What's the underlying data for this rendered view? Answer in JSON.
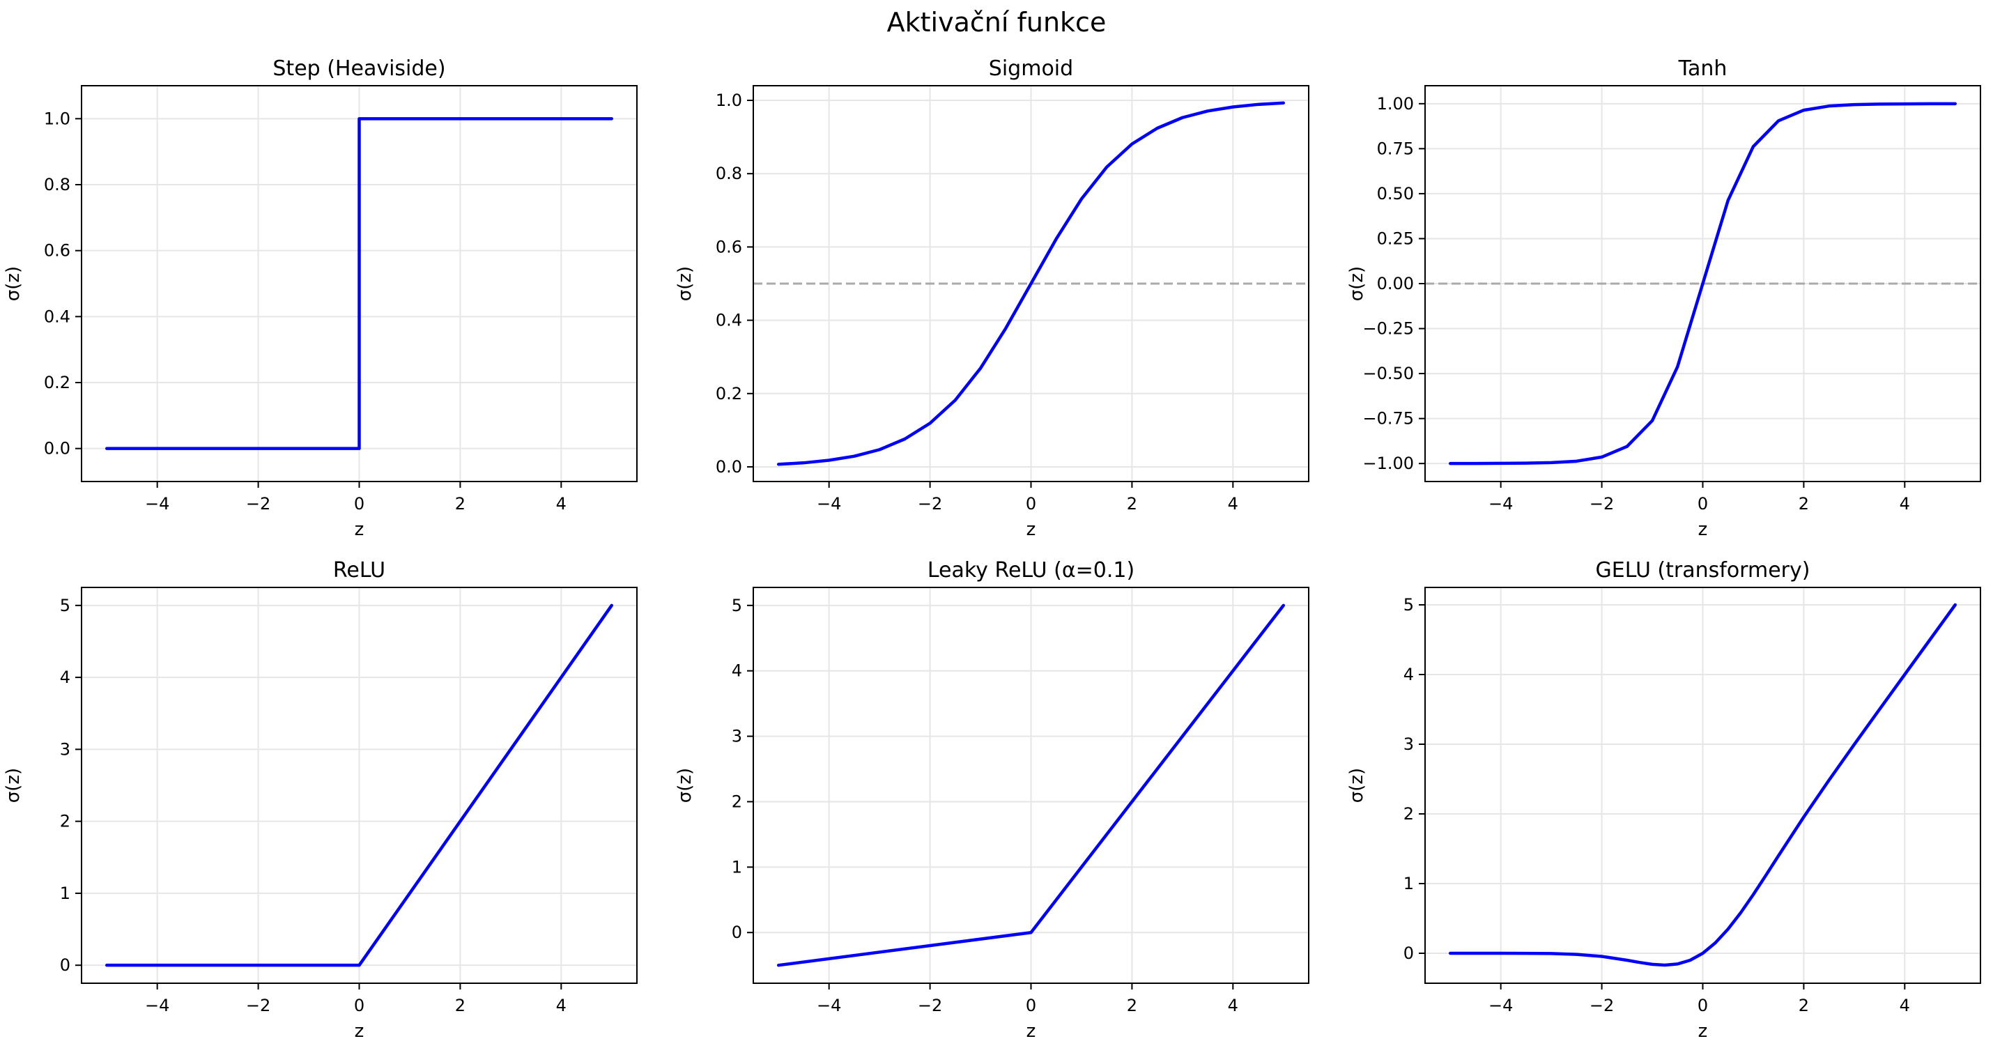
{
  "figure_title": "Aktivační funkce",
  "colors": {
    "line": "#0000ff",
    "reference": "#aaaaaa",
    "grid": "#e6e6e6",
    "axes": "#000000"
  },
  "chart_data": [
    {
      "type": "line",
      "title": "Step (Heaviside)",
      "xlabel": "z",
      "ylabel": "σ(z)",
      "xlim": [
        -5.5,
        5.5
      ],
      "ylim": [
        -0.1,
        1.1
      ],
      "xticks": [
        -4,
        -2,
        0,
        2,
        4
      ],
      "xtick_labels": [
        "−4",
        "−2",
        "0",
        "2",
        "4"
      ],
      "yticks": [
        0,
        0.2,
        0.4,
        0.6,
        0.8,
        1.0
      ],
      "ytick_labels": [
        "0.0",
        "0.2",
        "0.4",
        "0.6",
        "0.8",
        "1.0"
      ],
      "grid": true,
      "series": [
        {
          "x": [
            -5,
            0,
            0,
            5
          ],
          "y": [
            0,
            0,
            1,
            1
          ]
        }
      ]
    },
    {
      "type": "line",
      "title": "Sigmoid",
      "xlabel": "z",
      "ylabel": "σ(z)",
      "xlim": [
        -5.5,
        5.5
      ],
      "ylim": [
        -0.04,
        1.04
      ],
      "xticks": [
        -4,
        -2,
        0,
        2,
        4
      ],
      "xtick_labels": [
        "−4",
        "−2",
        "0",
        "2",
        "4"
      ],
      "yticks": [
        0,
        0.2,
        0.4,
        0.6,
        0.8,
        1.0
      ],
      "ytick_labels": [
        "0.0",
        "0.2",
        "0.4",
        "0.6",
        "0.8",
        "1.0"
      ],
      "grid": true,
      "reference_line": {
        "y": 0.5,
        "style": "dashed"
      },
      "series": [
        {
          "x": [
            -5,
            -4.5,
            -4,
            -3.5,
            -3,
            -2.5,
            -2,
            -1.5,
            -1,
            -0.5,
            0,
            0.5,
            1,
            1.5,
            2,
            2.5,
            3,
            3.5,
            4,
            4.5,
            5
          ],
          "y": [
            0.007,
            0.011,
            0.018,
            0.029,
            0.047,
            0.076,
            0.119,
            0.182,
            0.269,
            0.378,
            0.5,
            0.622,
            0.731,
            0.818,
            0.881,
            0.924,
            0.953,
            0.971,
            0.982,
            0.989,
            0.993
          ]
        }
      ]
    },
    {
      "type": "line",
      "title": "Tanh",
      "xlabel": "z",
      "ylabel": "σ(z)",
      "xlim": [
        -5.5,
        5.5
      ],
      "ylim": [
        -1.1,
        1.1
      ],
      "xticks": [
        -4,
        -2,
        0,
        2,
        4
      ],
      "xtick_labels": [
        "−4",
        "−2",
        "0",
        "2",
        "4"
      ],
      "yticks": [
        -1.0,
        -0.75,
        -0.5,
        -0.25,
        0,
        0.25,
        0.5,
        0.75,
        1.0
      ],
      "ytick_labels": [
        "−1.00",
        "−0.75",
        "−0.50",
        "−0.25",
        "0.00",
        "0.25",
        "0.50",
        "0.75",
        "1.00"
      ],
      "grid": true,
      "reference_line": {
        "y": 0,
        "style": "dashed"
      },
      "series": [
        {
          "x": [
            -5,
            -4.5,
            -4,
            -3.5,
            -3,
            -2.5,
            -2,
            -1.5,
            -1,
            -0.5,
            0,
            0.5,
            1,
            1.5,
            2,
            2.5,
            3,
            3.5,
            4,
            4.5,
            5
          ],
          "y": [
            -1.0,
            -1.0,
            -0.999,
            -0.998,
            -0.995,
            -0.987,
            -0.964,
            -0.905,
            -0.762,
            -0.462,
            0,
            0.462,
            0.762,
            0.905,
            0.964,
            0.987,
            0.995,
            0.998,
            0.999,
            1.0,
            1.0
          ]
        }
      ]
    },
    {
      "type": "line",
      "title": "ReLU",
      "xlabel": "z",
      "ylabel": "σ(z)",
      "xlim": [
        -5.5,
        5.5
      ],
      "ylim": [
        -0.25,
        5.25
      ],
      "xticks": [
        -4,
        -2,
        0,
        2,
        4
      ],
      "xtick_labels": [
        "−4",
        "−2",
        "0",
        "2",
        "4"
      ],
      "yticks": [
        0,
        1,
        2,
        3,
        4,
        5
      ],
      "ytick_labels": [
        "0",
        "1",
        "2",
        "3",
        "4",
        "5"
      ],
      "grid": true,
      "series": [
        {
          "x": [
            -5,
            0,
            5
          ],
          "y": [
            0,
            0,
            5
          ]
        }
      ]
    },
    {
      "type": "line",
      "title": "Leaky ReLU (α=0.1)",
      "xlabel": "z",
      "ylabel": "σ(z)",
      "xlim": [
        -5.5,
        5.5
      ],
      "ylim": [
        -0.775,
        5.275
      ],
      "xticks": [
        -4,
        -2,
        0,
        2,
        4
      ],
      "xtick_labels": [
        "−4",
        "−2",
        "0",
        "2",
        "4"
      ],
      "yticks": [
        0,
        1,
        2,
        3,
        4,
        5
      ],
      "ytick_labels": [
        "0",
        "1",
        "2",
        "3",
        "4",
        "5"
      ],
      "grid": true,
      "series": [
        {
          "x": [
            -5,
            0,
            5
          ],
          "y": [
            -0.5,
            0,
            5
          ]
        }
      ]
    },
    {
      "type": "line",
      "title": "GELU (transformery)",
      "xlabel": "z",
      "ylabel": "σ(z)",
      "xlim": [
        -5.5,
        5.5
      ],
      "ylim": [
        -0.43,
        5.25
      ],
      "xticks": [
        -4,
        -2,
        0,
        2,
        4
      ],
      "xtick_labels": [
        "−4",
        "−2",
        "0",
        "2",
        "4"
      ],
      "yticks": [
        0,
        1,
        2,
        3,
        4,
        5
      ],
      "ytick_labels": [
        "0",
        "1",
        "2",
        "3",
        "4",
        "5"
      ],
      "grid": true,
      "series": [
        {
          "x": [
            -5,
            -4.5,
            -4,
            -3.5,
            -3,
            -2.5,
            -2,
            -1.5,
            -1.25,
            -1,
            -0.75,
            -0.5,
            -0.25,
            0,
            0.25,
            0.5,
            0.75,
            1,
            1.25,
            1.5,
            2,
            2.5,
            3,
            3.5,
            4,
            4.5,
            5
          ],
          "y": [
            0,
            0,
            0,
            -0.001,
            -0.004,
            -0.016,
            -0.045,
            -0.1,
            -0.132,
            -0.159,
            -0.17,
            -0.154,
            -0.1,
            0,
            0.15,
            0.346,
            0.58,
            0.841,
            1.118,
            1.4,
            1.955,
            2.484,
            2.996,
            3.499,
            4.0,
            4.5,
            5.0
          ]
        }
      ]
    }
  ]
}
